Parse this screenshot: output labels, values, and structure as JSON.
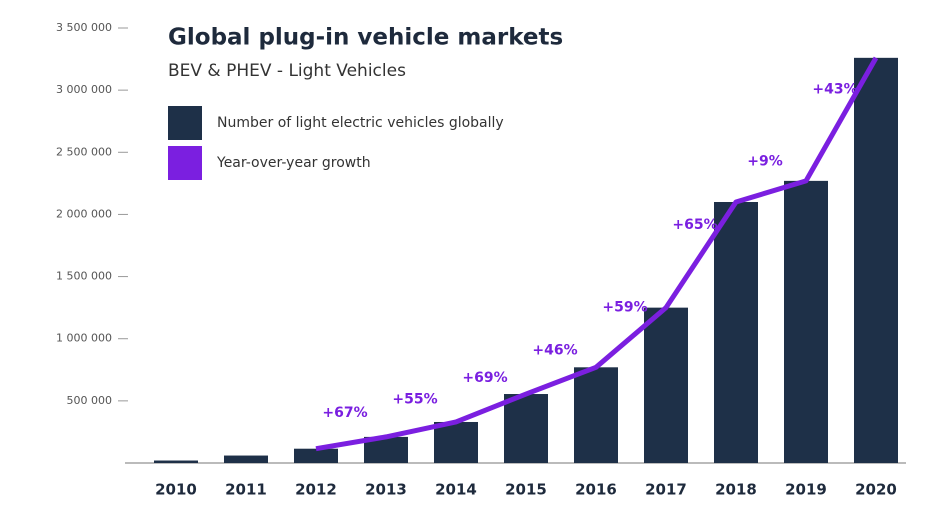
{
  "chart_data": {
    "type": "bar",
    "title": "Global plug-in vehicle markets",
    "subtitle": "BEV & PHEV - Light Vehicles",
    "categories": [
      "2010",
      "2011",
      "2012",
      "2013",
      "2014",
      "2015",
      "2016",
      "2017",
      "2018",
      "2019",
      "2020"
    ],
    "series": [
      {
        "name": "Number of light electric vehicles globally",
        "color": "#1e3048",
        "values": [
          20000,
          60000,
          115000,
          210000,
          330000,
          555000,
          770000,
          1250000,
          2100000,
          2270000,
          3260000
        ]
      },
      {
        "name": "Year-over-year growth",
        "color": "#7b1fe0",
        "values": [
          null,
          null,
          null,
          67,
          55,
          69,
          46,
          59,
          65,
          9,
          43
        ],
        "value_labels": [
          null,
          null,
          null,
          "+67%",
          "+55%",
          "+69%",
          "+46%",
          "+59%",
          "+65%",
          "+9%",
          "+43%"
        ]
      }
    ],
    "ylim": [
      0,
      3500000
    ],
    "yticks": [
      {
        "value": 500000,
        "label": "500 000"
      },
      {
        "value": 1000000,
        "label": "1 000 000"
      },
      {
        "value": 1500000,
        "label": "1 500 000"
      },
      {
        "value": 2000000,
        "label": "2 000 000"
      },
      {
        "value": 2500000,
        "label": "2 500 000"
      },
      {
        "value": 3000000,
        "label": "3 000 000"
      },
      {
        "value": 3500000,
        "label": "3 500 000"
      }
    ],
    "legend": "top-left"
  }
}
